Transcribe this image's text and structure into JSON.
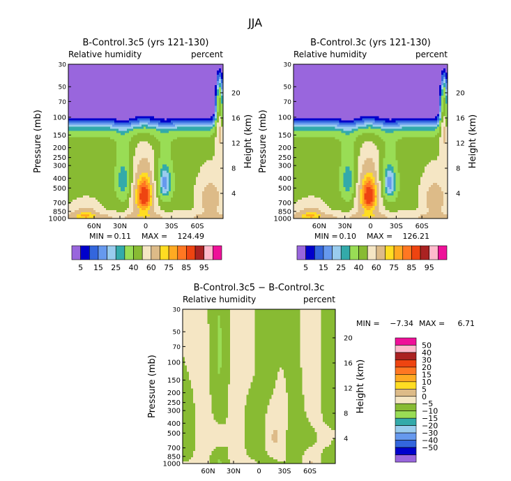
{
  "page_title": "JJA",
  "chart_data": [
    {
      "type": "heatmap",
      "title": "B-Control.3c5 (yrs 121-130)",
      "left_label": "Relative humidity",
      "right_label": "percent",
      "ylabel": "Pressure (mb)",
      "ylabel2": "Height (km)",
      "pressure_ticks": [
        30,
        50,
        70,
        100,
        150,
        200,
        250,
        300,
        400,
        500,
        700,
        850,
        1000
      ],
      "height_ticks": [
        20,
        16,
        12,
        8,
        4
      ],
      "lat_ticks": [
        "60N",
        "30N",
        "0",
        "30S",
        "60S"
      ],
      "lat_values": [
        60,
        30,
        0,
        -30,
        -60
      ],
      "xlim": [
        90,
        -90
      ],
      "ylim": [
        1000,
        30
      ],
      "stats": {
        "min_label": "MIN =",
        "min": "0.11",
        "max_label": "MAX =",
        "max": "124.49"
      },
      "levels": [
        "5",
        "15",
        "25",
        "40",
        "60",
        "75",
        "85",
        "95"
      ],
      "colors": [
        "#9966dd",
        "#0000cc",
        "#3366dd",
        "#6699ee",
        "#99ccee",
        "#33aaaa",
        "#99dd55",
        "#88bb33",
        "#f5e6c4",
        "#ddbb88",
        "#ffdd22",
        "#ffaa22",
        "#ff7722",
        "#ee4411",
        "#aa2222",
        "#ffbbcc",
        "#ee1199"
      ],
      "field": "control"
    },
    {
      "type": "heatmap",
      "title": "B-Control.3c (yrs 121-130)",
      "left_label": "Relative humidity",
      "right_label": "percent",
      "ylabel": "Pressure (mb)",
      "ylabel2": "Height (km)",
      "pressure_ticks": [
        30,
        50,
        70,
        100,
        150,
        200,
        250,
        300,
        400,
        500,
        700,
        850,
        1000
      ],
      "height_ticks": [
        20,
        16,
        12,
        8,
        4
      ],
      "lat_ticks": [
        "60N",
        "30N",
        "0",
        "30S",
        "60S"
      ],
      "lat_values": [
        60,
        30,
        0,
        -30,
        -60
      ],
      "xlim": [
        90,
        -90
      ],
      "ylim": [
        1000,
        30
      ],
      "stats": {
        "min_label": "MIN =",
        "min": "0.10",
        "max_label": "MAX =",
        "max": "126.21"
      },
      "levels": [
        "5",
        "15",
        "25",
        "40",
        "60",
        "75",
        "85",
        "95"
      ],
      "colors": [
        "#9966dd",
        "#0000cc",
        "#3366dd",
        "#6699ee",
        "#99ccee",
        "#33aaaa",
        "#99dd55",
        "#88bb33",
        "#f5e6c4",
        "#ddbb88",
        "#ffdd22",
        "#ffaa22",
        "#ff7722",
        "#ee4411",
        "#aa2222",
        "#ffbbcc",
        "#ee1199"
      ],
      "field": "control"
    },
    {
      "type": "heatmap",
      "title": "B-Control.3c5 − B-Control.3c",
      "left_label": "Relative humidity",
      "right_label": "percent",
      "ylabel": "Pressure (mb)",
      "ylabel2": "Height (km)",
      "pressure_ticks": [
        30,
        50,
        70,
        100,
        150,
        200,
        250,
        300,
        400,
        500,
        700,
        850,
        1000
      ],
      "height_ticks": [
        20,
        16,
        12,
        8,
        4
      ],
      "lat_ticks": [
        "60N",
        "30N",
        "0",
        "30S",
        "60S"
      ],
      "lat_values": [
        60,
        30,
        0,
        -30,
        -60
      ],
      "xlim": [
        90,
        -90
      ],
      "ylim": [
        1000,
        30
      ],
      "stats": {
        "min_label": "MIN =",
        "min": "−7.34",
        "max_label": "MAX =",
        "max": "6.71"
      },
      "levels": [
        "50",
        "40",
        "30",
        "20",
        "15",
        "10",
        "5",
        "0",
        "−5",
        "−10",
        "−15",
        "−20",
        "−30",
        "−40",
        "−50"
      ],
      "colors": [
        "#ee1199",
        "#ffbbcc",
        "#aa2222",
        "#ee4411",
        "#ff7722",
        "#ffaa22",
        "#ffdd22",
        "#ddbb88",
        "#f5e6c4",
        "#88bb33",
        "#99dd55",
        "#33aaaa",
        "#99ccee",
        "#6699ee",
        "#3366dd",
        "#0000cc",
        "#9966dd"
      ],
      "field": "diff"
    }
  ]
}
